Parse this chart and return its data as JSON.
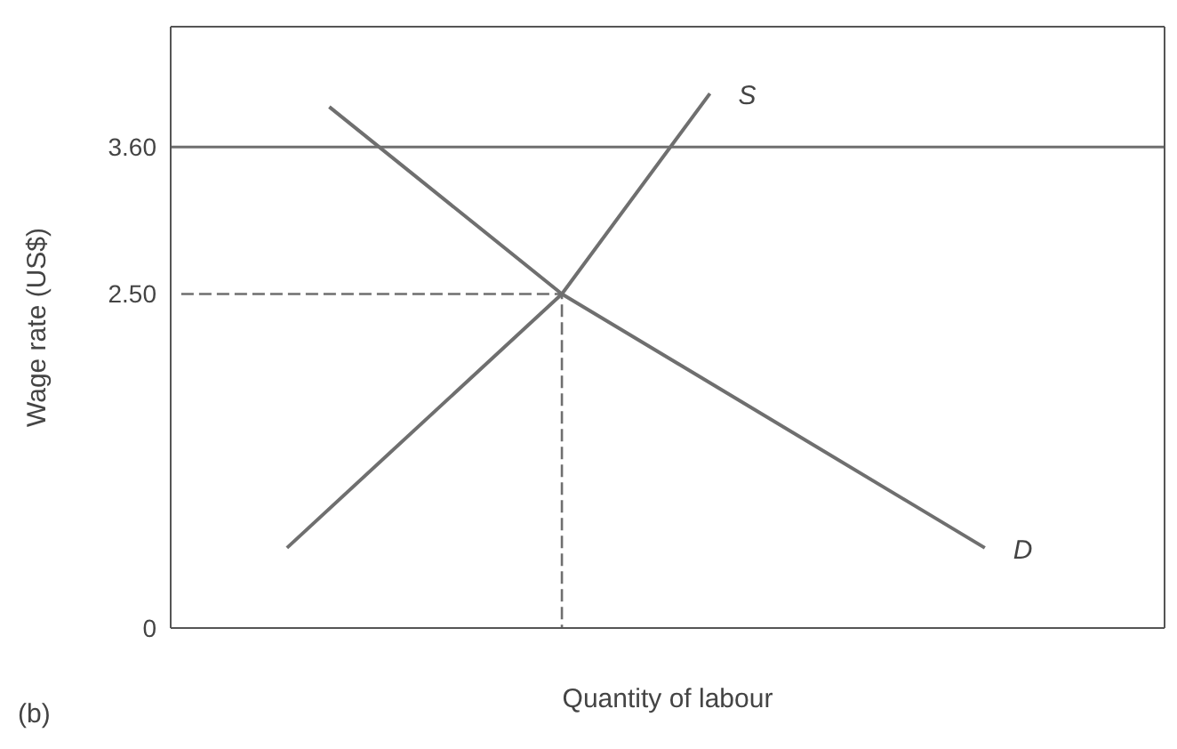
{
  "chart_data": {
    "type": "line",
    "xlabel": "Quantity of labour",
    "ylabel": "Wage rate (US$)",
    "annotations": [
      "(b)"
    ],
    "categories": [
      null,
      null,
      null,
      null,
      null,
      null,
      null,
      null,
      null,
      null,
      null,
      null,
      null,
      null,
      null,
      null,
      null,
      null,
      null,
      null,
      null,
      null,
      null,
      null,
      null,
      null,
      null,
      null,
      null,
      null,
      null,
      null,
      null,
      null,
      null,
      null,
      null,
      null,
      null,
      null,
      null,
      null,
      null,
      null,
      null,
      null,
      null
    ],
    "ylim": [
      0,
      4.5
    ],
    "yticks": [
      0,
      {
        "value": 2.5,
        "label": "2.50"
      },
      {
        "value": 3.6,
        "label": "3.60"
      }
    ],
    "grid": false,
    "legend": false,
    "marker": "none",
    "series": [
      {
        "name": "S",
        "color": "#6f6f6f",
        "values": [
          null,
          null,
          null,
          null,
          null,
          0.6,
          null,
          null,
          null,
          null,
          null,
          null,
          null,
          null,
          null,
          null,
          null,
          null,
          2.5,
          null,
          null,
          null,
          null,
          null,
          null,
          4.0,
          null,
          null,
          null,
          null,
          null,
          null,
          null,
          null,
          null,
          null,
          null,
          null,
          null,
          null,
          null,
          null,
          null,
          null,
          null,
          null,
          null
        ]
      },
      {
        "name": "D",
        "color": "#6f6f6f",
        "values": [
          null,
          null,
          null,
          null,
          null,
          null,
          null,
          3.9,
          null,
          null,
          null,
          null,
          null,
          null,
          null,
          null,
          null,
          null,
          2.5,
          null,
          null,
          null,
          null,
          null,
          null,
          null,
          null,
          null,
          null,
          null,
          null,
          null,
          null,
          null,
          null,
          null,
          null,
          null,
          0.6,
          null,
          null,
          null,
          null,
          null,
          null,
          null,
          null
        ]
      },
      {
        "type": "step",
        "color": "#6f6f6f",
        "line_style": "dashed",
        "values": [
          2.5,
          2.5,
          2.5,
          2.5,
          2.5,
          2.5,
          2.5,
          2.5,
          2.5,
          2.5,
          2.5,
          2.5,
          2.5,
          2.5,
          2.5,
          2.5,
          2.5,
          2.5,
          0,
          null,
          null,
          null,
          null,
          null,
          null,
          null,
          null,
          null,
          null,
          null,
          null,
          null,
          null,
          null,
          null,
          null,
          null,
          null,
          null,
          null,
          null,
          null,
          null,
          null,
          null,
          null,
          null
        ]
      }
    ],
    "ref_lines": [
      {
        "axis": "y",
        "value": 3.6,
        "color": "#6f6f6f",
        "line_style": "solid"
      }
    ]
  }
}
